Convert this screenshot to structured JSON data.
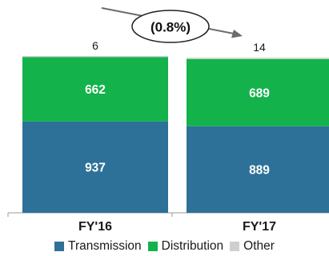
{
  "chart_data": {
    "type": "bar",
    "stacked": true,
    "categories": [
      "FY'16",
      "FY'17"
    ],
    "series": [
      {
        "name": "Transmission",
        "values": [
          937,
          889
        ],
        "color": "#2e7198"
      },
      {
        "name": "Distribution",
        "values": [
          662,
          689
        ],
        "color": "#13b24b"
      },
      {
        "name": "Other",
        "values": [
          6,
          14
        ],
        "color": "#cfcfcf"
      }
    ],
    "segment_labels": {
      "Transmission": [
        "937",
        "889"
      ],
      "Distribution": [
        "662",
        "689"
      ]
    },
    "top_labels": [
      "6",
      "14"
    ],
    "change_annotation": "(0.8%)",
    "legend_position": "bottom",
    "grid": false
  }
}
